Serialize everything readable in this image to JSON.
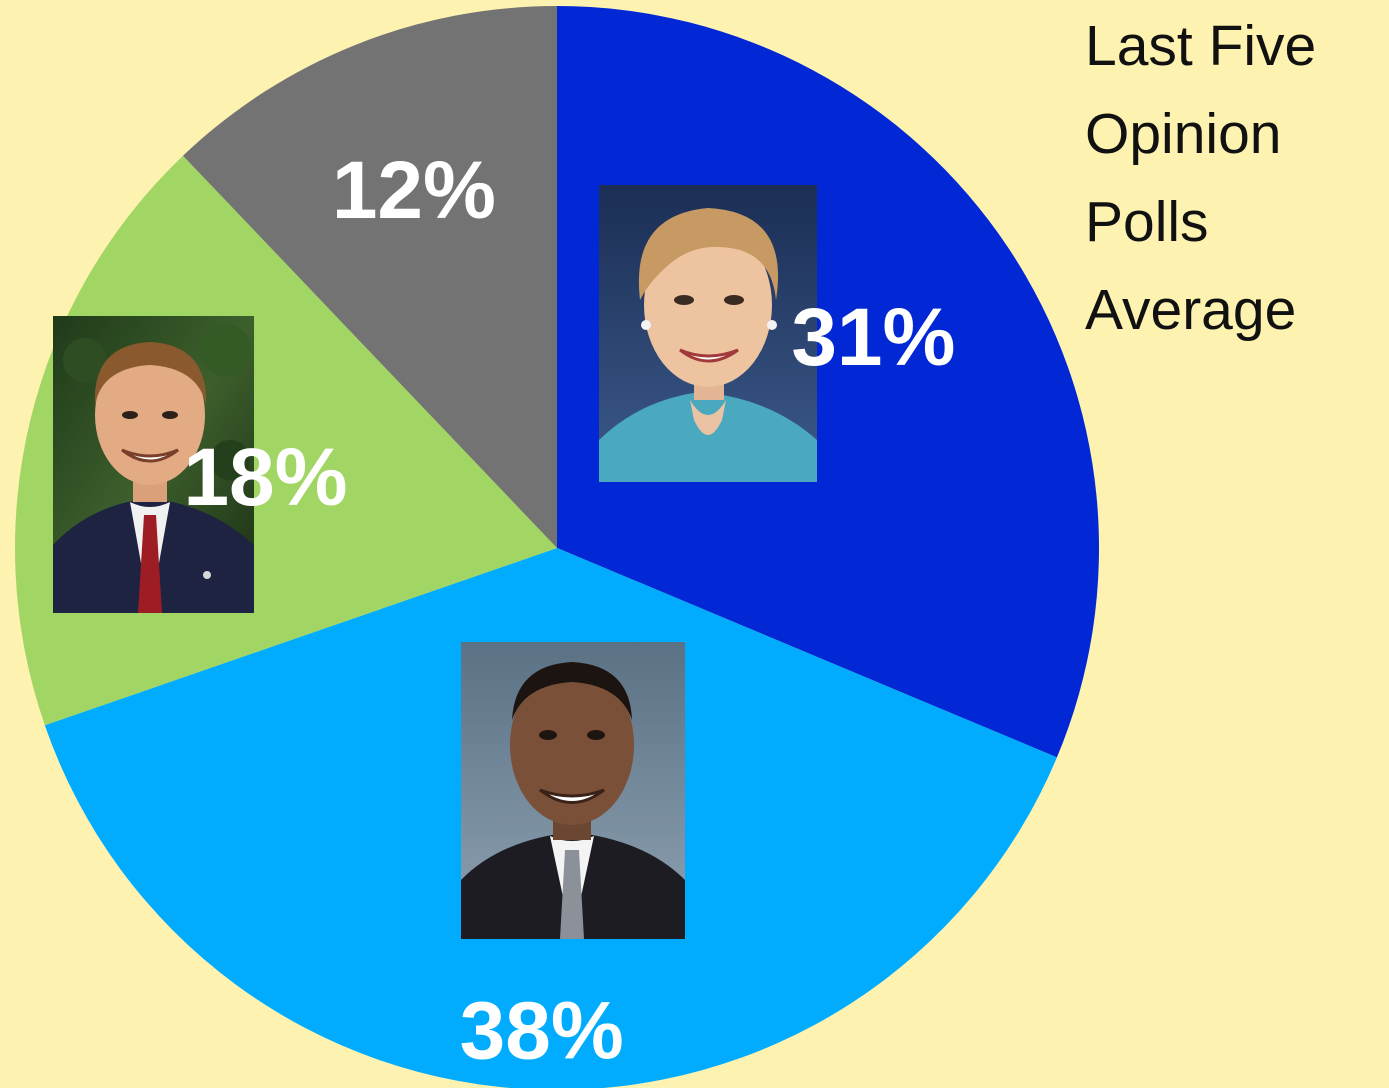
{
  "page": {
    "background_color": "#fdf2b0"
  },
  "chart_data": {
    "type": "pie",
    "title": "Last Five Opinion Polls Average",
    "slices": [
      {
        "value": 31,
        "label": "31%",
        "color": "#0228d6",
        "image": "photo-portrait-woman"
      },
      {
        "value": 38,
        "label": "38%",
        "color": "#01acfe",
        "image": "photo-portrait-man-dark-suit"
      },
      {
        "value": 18,
        "label": "18%",
        "color": "#a1d664",
        "image": "photo-portrait-man-red-tie"
      },
      {
        "value": 12,
        "label": "12%",
        "color": "#737373",
        "image": null
      }
    ],
    "start_angle": "top (12 o'clock)",
    "direction": "clockwise",
    "legend": "none"
  }
}
